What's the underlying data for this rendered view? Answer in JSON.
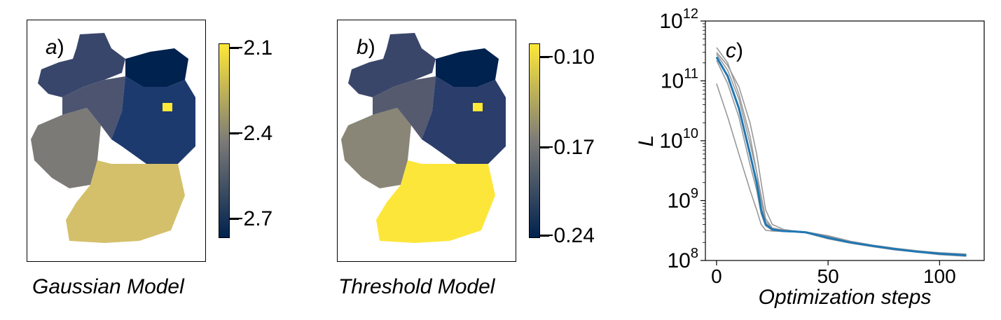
{
  "panels": {
    "a": {
      "letter": "a",
      "caption": "Gaussian Model",
      "colorbar": {
        "ticks": [
          "−2.1",
          "−2.4",
          "−2.7"
        ]
      }
    },
    "b": {
      "letter": "b",
      "caption": "Threshold Model",
      "colorbar": {
        "ticks": [
          "−0.10",
          "−0.17",
          "−0.24"
        ]
      }
    }
  },
  "colormap": {
    "name": "cividis",
    "low": "#00224e",
    "mid": "#7c7b78",
    "high": "#fee838"
  },
  "chart_data": {
    "type": "line",
    "letter": "c",
    "xlabel": "Optimization steps",
    "ylabel": "L",
    "xlim": [
      -5,
      120
    ],
    "ylim": [
      100000000.0,
      1000000000000.0
    ],
    "yscale": "log",
    "xticks": [
      0,
      50,
      100
    ],
    "yticks": [
      {
        "value": 100000000.0,
        "base": "10",
        "exp": "8"
      },
      {
        "value": 1000000000.0,
        "base": "10",
        "exp": "9"
      },
      {
        "value": 10000000000.0,
        "base": "10",
        "exp": "10"
      },
      {
        "value": 100000000000.0,
        "base": "10",
        "exp": "11"
      },
      {
        "value": 1000000000000.0,
        "base": "10",
        "exp": "12"
      }
    ],
    "grid": false,
    "series": [
      {
        "color": "#1f77b4",
        "role": "mean",
        "x": [
          0,
          5,
          10,
          15,
          18,
          20,
          22,
          25,
          30,
          35,
          40,
          50,
          60,
          70,
          80,
          90,
          100,
          112
        ],
        "y": [
          250000000000.0,
          120000000000.0,
          35000000000.0,
          6000000000.0,
          2000000000.0,
          700000000.0,
          400000000.0,
          330000000.0,
          310000000.0,
          305000000.0,
          295000000.0,
          240000000.0,
          200000000.0,
          175000000.0,
          155000000.0,
          140000000.0,
          130000000.0,
          122000000.0
        ]
      },
      {
        "color": "#999999",
        "role": "run",
        "x": [
          0,
          5,
          10,
          15,
          18,
          20,
          22,
          25,
          30,
          35,
          40,
          50,
          60,
          70,
          80,
          90,
          100,
          112
        ],
        "y": [
          360000000000.0,
          200000000000.0,
          60000000000.0,
          12000000000.0,
          3000000000.0,
          1000000000.0,
          450000000.0,
          340000000.0,
          315000000.0,
          310000000.0,
          300000000.0,
          260000000.0,
          210000000.0,
          180000000.0,
          160000000.0,
          145000000.0,
          135000000.0,
          128000000.0
        ]
      },
      {
        "color": "#999999",
        "role": "run",
        "x": [
          0,
          5,
          10,
          15,
          18,
          20,
          22,
          25,
          30,
          35,
          40,
          50,
          60,
          70,
          80,
          90,
          100,
          112
        ],
        "y": [
          90000000000.0,
          25000000000.0,
          6000000000.0,
          1500000000.0,
          700000000.0,
          400000000.0,
          320000000.0,
          310000000.0,
          305000000.0,
          300000000.0,
          290000000.0,
          230000000.0,
          195000000.0,
          170000000.0,
          150000000.0,
          138000000.0,
          125000000.0,
          118000000.0
        ]
      },
      {
        "color": "#999999",
        "role": "run",
        "x": [
          0,
          5,
          10,
          15,
          18,
          20,
          22,
          25,
          30,
          35,
          40,
          50,
          60,
          70,
          80,
          90,
          100,
          112
        ],
        "y": [
          280000000000.0,
          150000000000.0,
          50000000000.0,
          9000000000.0,
          3000000000.0,
          1200000000.0,
          500000000.0,
          350000000.0,
          320000000.0,
          310000000.0,
          300000000.0,
          250000000.0,
          205000000.0,
          178000000.0,
          158000000.0,
          142000000.0,
          130000000.0,
          120000000.0
        ]
      },
      {
        "color": "#999999",
        "role": "run",
        "x": [
          0,
          5,
          10,
          15,
          18,
          20,
          22,
          25,
          30,
          35,
          40,
          50,
          60,
          70,
          80,
          90,
          100,
          112
        ],
        "y": [
          220000000000.0,
          90000000000.0,
          25000000000.0,
          4000000000.0,
          1500000000.0,
          600000000.0,
          380000000.0,
          320000000.0,
          310000000.0,
          305000000.0,
          290000000.0,
          235000000.0,
          198000000.0,
          172000000.0,
          152000000.0,
          140000000.0,
          128000000.0,
          120000000.0
        ]
      },
      {
        "color": "#999999",
        "role": "run",
        "x": [
          0,
          5,
          10,
          15,
          18,
          20,
          22,
          25,
          30,
          35,
          40,
          50,
          60,
          70,
          80,
          90,
          100,
          112
        ],
        "y": [
          300000000000.0,
          180000000000.0,
          80000000000.0,
          20000000000.0,
          6000000000.0,
          2000000000.0,
          700000000.0,
          400000000.0,
          330000000.0,
          310000000.0,
          300000000.0,
          255000000.0,
          210000000.0,
          180000000.0,
          160000000.0,
          145000000.0,
          133000000.0,
          125000000.0
        ]
      }
    ]
  }
}
